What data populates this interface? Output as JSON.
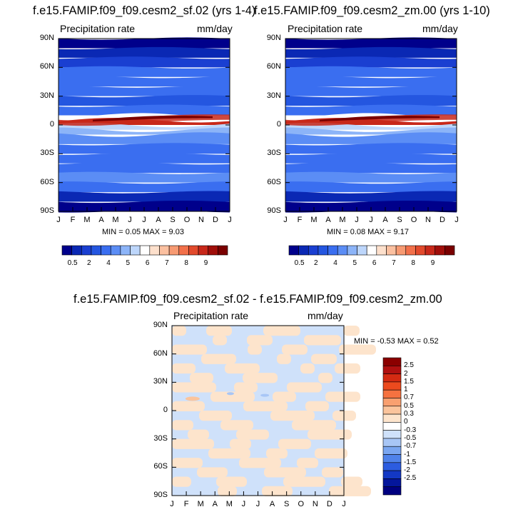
{
  "chart_data": [
    {
      "type": "heatmap",
      "title": "f.e15.FAMIP.f09_f09.cesm2_sf.02 (yrs 1-4)",
      "left_label": "Precipitation rate",
      "right_label": "mm/day",
      "x_ticks": [
        "J",
        "F",
        "M",
        "A",
        "M",
        "J",
        "J",
        "A",
        "S",
        "O",
        "N",
        "D",
        "J"
      ],
      "y_ticks": [
        "90N",
        "60N",
        "30N",
        "0",
        "30S",
        "60S",
        "90S"
      ],
      "stats": "MIN =   0.05 MAX =    9.03",
      "colorbar_labels": [
        "0.5",
        "2",
        "4",
        "5",
        "6",
        "7",
        "8",
        "9"
      ],
      "colorbar_colors": [
        "#00008b",
        "#0a28b4",
        "#1a3fd1",
        "#2456e0",
        "#3a6ef0",
        "#5b8df5",
        "#8cb4f8",
        "#bdd6fb",
        "#ffffff",
        "#fde0cc",
        "#fbc0a0",
        "#f79a72",
        "#f2704a",
        "#e24a2c",
        "#c8281a",
        "#a00e0a",
        "#7a0000"
      ],
      "zones": [
        {
          "lat": 90,
          "value": 0.3
        },
        {
          "lat": 80,
          "value": 0.8
        },
        {
          "lat": 70,
          "value": 1.5
        },
        {
          "lat": 60,
          "value": 2.5
        },
        {
          "lat": 50,
          "value": 3.0
        },
        {
          "lat": 40,
          "value": 2.4
        },
        {
          "lat": 30,
          "value": 2.0
        },
        {
          "lat": 20,
          "value": 2.6
        },
        {
          "lat": 10,
          "value": 5.5
        },
        {
          "lat": 5,
          "value": 8.2
        },
        {
          "lat": 0,
          "value": 5.0
        },
        {
          "lat": -5,
          "value": 4.5
        },
        {
          "lat": -10,
          "value": 3.6
        },
        {
          "lat": -20,
          "value": 2.4
        },
        {
          "lat": -30,
          "value": 2.2
        },
        {
          "lat": -40,
          "value": 2.8
        },
        {
          "lat": -50,
          "value": 3.2
        },
        {
          "lat": -60,
          "value": 2.4
        },
        {
          "lat": -70,
          "value": 1.0
        },
        {
          "lat": -80,
          "value": 0.5
        },
        {
          "lat": -90,
          "value": 0.2
        }
      ]
    },
    {
      "type": "heatmap",
      "title": "f.e15.FAMIP.f09_f09.cesm2_zm.00 (yrs 1-10)",
      "left_label": "Precipitation rate",
      "right_label": "mm/day",
      "x_ticks": [
        "J",
        "F",
        "M",
        "A",
        "M",
        "J",
        "J",
        "A",
        "S",
        "O",
        "N",
        "D",
        "J"
      ],
      "y_ticks": [
        "90N",
        "60N",
        "30N",
        "0",
        "30S",
        "60S",
        "90S"
      ],
      "stats": "MIN =   0.08 MAX =    9.17",
      "colorbar_labels": [
        "0.5",
        "2",
        "4",
        "5",
        "6",
        "7",
        "8",
        "9"
      ],
      "colorbar_colors": [
        "#00008b",
        "#0a28b4",
        "#1a3fd1",
        "#2456e0",
        "#3a6ef0",
        "#5b8df5",
        "#8cb4f8",
        "#bdd6fb",
        "#ffffff",
        "#fde0cc",
        "#fbc0a0",
        "#f79a72",
        "#f2704a",
        "#e24a2c",
        "#c8281a",
        "#a00e0a",
        "#7a0000"
      ],
      "zones": [
        {
          "lat": 90,
          "value": 0.3
        },
        {
          "lat": 80,
          "value": 0.8
        },
        {
          "lat": 70,
          "value": 1.5
        },
        {
          "lat": 60,
          "value": 2.5
        },
        {
          "lat": 50,
          "value": 3.0
        },
        {
          "lat": 40,
          "value": 2.4
        },
        {
          "lat": 30,
          "value": 2.0
        },
        {
          "lat": 20,
          "value": 2.6
        },
        {
          "lat": 10,
          "value": 5.5
        },
        {
          "lat": 5,
          "value": 8.3
        },
        {
          "lat": 0,
          "value": 5.0
        },
        {
          "lat": -5,
          "value": 4.5
        },
        {
          "lat": -10,
          "value": 3.6
        },
        {
          "lat": -20,
          "value": 2.4
        },
        {
          "lat": -30,
          "value": 2.2
        },
        {
          "lat": -40,
          "value": 2.8
        },
        {
          "lat": -50,
          "value": 3.2
        },
        {
          "lat": -60,
          "value": 2.4
        },
        {
          "lat": -70,
          "value": 1.0
        },
        {
          "lat": -80,
          "value": 0.5
        },
        {
          "lat": -90,
          "value": 0.2
        }
      ]
    },
    {
      "type": "heatmap",
      "title": "f.e15.FAMIP.f09_f09.cesm2_sf.02 - f.e15.FAMIP.f09_f09.cesm2_zm.00",
      "left_label": "Precipitation rate",
      "right_label": "mm/day",
      "x_ticks": [
        "J",
        "F",
        "M",
        "A",
        "M",
        "J",
        "J",
        "A",
        "S",
        "O",
        "N",
        "D",
        "J"
      ],
      "y_ticks": [
        "90N",
        "60N",
        "30N",
        "0",
        "30S",
        "60S",
        "90S"
      ],
      "stats": "MIN =  -0.53 MAX =   0.52",
      "colorbar_labels": [
        "2.5",
        "2",
        "1.5",
        "1",
        "0.7",
        "0.5",
        "0.3",
        "0",
        "-0.3",
        "-0.5",
        "-0.7",
        "-1",
        "-1.5",
        "-2",
        "-2.5"
      ],
      "colorbar_colors": [
        "#8b0000",
        "#b01010",
        "#d42a12",
        "#ec4a1e",
        "#f57240",
        "#f9a070",
        "#fbc49c",
        "#fde4cc",
        "#ffffff",
        "#cfe1fa",
        "#a8c6f6",
        "#7aa6f1",
        "#4f82ea",
        "#2c5ce0",
        "#1338c4",
        "#04169c",
        "#000080"
      ],
      "diff_colors": {
        "warm": "#fde4cc",
        "cool": "#cfe1fa",
        "warm2": "#fbc49c",
        "cool2": "#a8c6f6"
      }
    }
  ]
}
